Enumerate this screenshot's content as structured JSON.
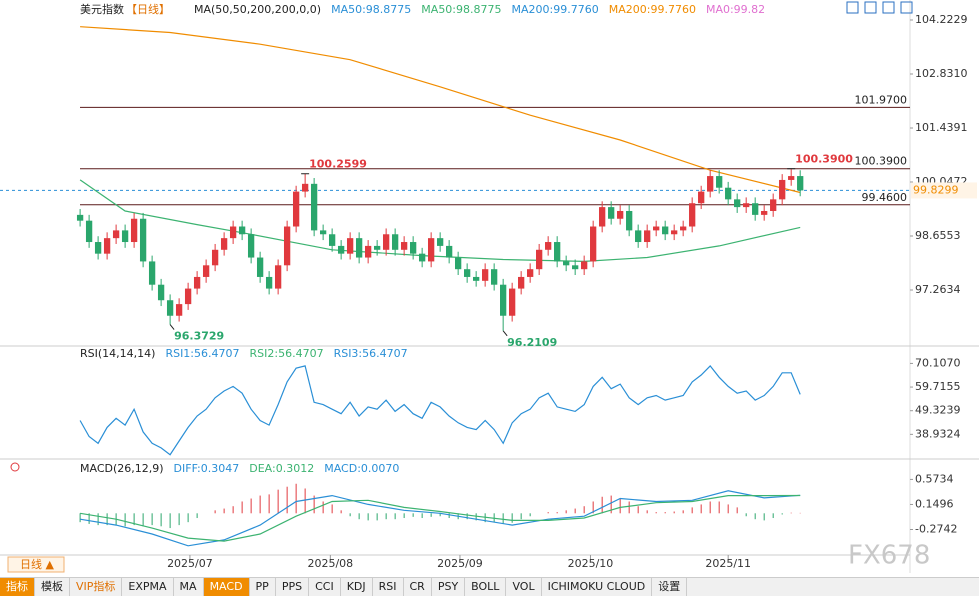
{
  "chart_data": [
    {
      "type": "candlestick",
      "title": "美元指数",
      "period": "【日线】",
      "legend": [
        {
          "text": "MA(50,50,200,200,0,0)",
          "color": "#222222"
        },
        {
          "text": "MA50:98.8775",
          "color": "#2a8fd6"
        },
        {
          "text": "MA50:98.8775",
          "color": "#3cb371"
        },
        {
          "text": "MA200:99.7760",
          "color": "#2a8fd6"
        },
        {
          "text": "MA200:99.7760",
          "color": "#f08c00"
        },
        {
          "text": "MA0:99.82",
          "color": "#e070d0"
        }
      ],
      "up_color": "#e0393e",
      "down_color": "#2aa66c",
      "open": [
        99.2,
        99.05,
        98.5,
        98.2,
        98.6,
        98.8,
        98.5,
        99.1,
        98.0,
        97.4,
        97.0,
        96.6,
        96.9,
        97.3,
        97.6,
        97.9,
        98.3,
        98.6,
        98.9,
        98.7,
        98.1,
        97.6,
        97.3,
        97.9,
        98.9,
        99.8,
        100.0,
        98.8,
        98.7,
        98.4,
        98.2,
        98.6,
        98.1,
        98.4,
        98.3,
        98.7,
        98.3,
        98.5,
        98.2,
        98.0,
        98.6,
        98.4,
        98.1,
        97.8,
        97.6,
        97.5,
        97.8,
        97.4,
        96.6,
        97.3,
        97.6,
        97.8,
        98.3,
        98.5,
        98.0,
        97.9,
        97.8,
        98.0,
        98.9,
        99.4,
        99.1,
        99.3,
        98.8,
        98.5,
        98.8,
        98.9,
        98.7,
        98.8,
        98.9,
        99.5,
        99.8,
        100.2,
        99.9,
        99.6,
        99.4,
        99.5,
        99.2,
        99.3,
        99.6,
        100.1,
        100.2
      ],
      "high": [
        99.35,
        99.2,
        98.65,
        98.75,
        98.95,
        98.95,
        99.25,
        99.25,
        98.15,
        97.55,
        97.15,
        97.05,
        97.45,
        97.75,
        98.05,
        98.45,
        98.75,
        99.05,
        99.05,
        98.85,
        98.25,
        97.75,
        98.05,
        99.05,
        99.95,
        100.2599,
        100.15,
        98.95,
        98.85,
        98.55,
        98.75,
        98.75,
        98.55,
        98.55,
        98.85,
        98.85,
        98.65,
        98.65,
        98.35,
        98.75,
        98.75,
        98.55,
        98.25,
        97.95,
        97.75,
        97.95,
        97.95,
        97.55,
        97.45,
        97.75,
        97.95,
        98.45,
        98.65,
        98.65,
        98.15,
        98.05,
        98.15,
        99.05,
        99.55,
        99.55,
        99.45,
        99.45,
        98.95,
        98.95,
        99.05,
        99.05,
        98.95,
        99.05,
        99.65,
        99.95,
        100.35,
        100.35,
        100.05,
        99.75,
        99.65,
        99.65,
        99.45,
        99.75,
        100.25,
        100.39,
        100.35
      ],
      "low": [
        98.9,
        98.35,
        98.05,
        98.05,
        98.45,
        98.35,
        98.35,
        97.85,
        97.25,
        96.85,
        96.3729,
        96.45,
        96.75,
        97.15,
        97.45,
        97.75,
        98.15,
        98.45,
        98.55,
        97.95,
        97.45,
        97.15,
        97.15,
        97.75,
        98.75,
        99.65,
        98.65,
        98.55,
        98.25,
        98.05,
        98.05,
        97.95,
        97.95,
        98.15,
        98.15,
        98.15,
        98.15,
        98.05,
        97.85,
        97.85,
        98.25,
        97.95,
        97.65,
        97.45,
        97.35,
        97.35,
        97.25,
        96.2109,
        96.45,
        97.15,
        97.45,
        97.65,
        98.15,
        97.85,
        97.75,
        97.65,
        97.65,
        97.85,
        98.75,
        98.95,
        98.95,
        98.65,
        98.35,
        98.35,
        98.65,
        98.55,
        98.55,
        98.65,
        98.75,
        99.35,
        99.65,
        99.75,
        99.45,
        99.25,
        99.25,
        99.05,
        99.05,
        99.15,
        99.45,
        99.95,
        99.68
      ],
      "close": [
        99.05,
        98.5,
        98.2,
        98.6,
        98.8,
        98.5,
        99.1,
        98.0,
        97.4,
        97.0,
        96.6,
        96.9,
        97.3,
        97.6,
        97.9,
        98.3,
        98.6,
        98.9,
        98.7,
        98.1,
        97.6,
        97.3,
        97.9,
        98.9,
        99.8,
        100.0,
        98.8,
        98.7,
        98.4,
        98.2,
        98.6,
        98.1,
        98.4,
        98.3,
        98.7,
        98.3,
        98.5,
        98.2,
        98.0,
        98.6,
        98.4,
        98.1,
        97.8,
        97.6,
        97.5,
        97.8,
        97.4,
        96.6,
        97.3,
        97.6,
        97.8,
        98.3,
        98.5,
        98.0,
        97.9,
        97.8,
        98.0,
        98.9,
        99.4,
        99.1,
        99.3,
        98.8,
        98.5,
        98.8,
        98.9,
        98.7,
        98.8,
        98.9,
        99.5,
        99.8,
        100.2,
        99.9,
        99.6,
        99.4,
        99.5,
        99.2,
        99.3,
        99.6,
        100.1,
        100.2,
        99.83
      ],
      "series": [
        {
          "name": "MA200",
          "color": "#f08c00",
          "x": [
            0,
            10,
            20,
            30,
            40,
            50,
            60,
            70,
            80
          ],
          "values": [
            104.05,
            103.9,
            103.6,
            103.2,
            102.5,
            101.77,
            101.13,
            100.35,
            99.776
          ]
        },
        {
          "name": "MA50",
          "color": "#3cb371",
          "x": [
            0,
            5,
            13,
            19,
            28,
            38,
            47,
            56,
            63,
            71,
            80
          ],
          "values": [
            100.1,
            99.3,
            98.95,
            98.7,
            98.3,
            98.15,
            98.05,
            98.0,
            98.1,
            98.4,
            98.8775
          ]
        }
      ],
      "hlines": [
        {
          "value": 101.97,
          "label": "101.9700"
        },
        {
          "value": 100.39,
          "label": "100.3900"
        },
        {
          "value": 99.46,
          "label": "99.4600"
        }
      ],
      "high_labels": [
        100.2599,
        {
          "value": 100.39,
          "label": "100.3900"
        }
      ],
      "low_labels": [
        96.3729,
        96.2109
      ],
      "last": 99.8299,
      "ylim": [
        95.846,
        104.738
      ],
      "yticks": [
        104.2229,
        {
          "value": 102.831,
          "label": "102.8310"
        },
        101.4391,
        100.0472,
        98.6553,
        97.2634
      ],
      "xlim": [
        -8.9,
        92.2
      ],
      "xticks": [
        {
          "value": 12.2,
          "label": "2025/07"
        },
        {
          "value": 27.8,
          "label": "2025/08"
        },
        {
          "value": 42.2,
          "label": "2025/09"
        },
        {
          "value": 56.7,
          "label": "2025/10"
        },
        {
          "value": 72,
          "label": "2025/11"
        }
      ]
    },
    {
      "type": "line",
      "title": "RSI(14,14,14)",
      "legend": [
        {
          "text": "RSI1:56.4707",
          "color": "#2a8fd6"
        },
        {
          "text": "RSI2:56.4707",
          "color": "#3cb371"
        },
        {
          "text": "RSI3:56.4707",
          "color": "#2a8fd6"
        }
      ],
      "series": [
        {
          "name": "RSI",
          "color": "#2a8fd6",
          "values": [
            45,
            38,
            35,
            42,
            46,
            43,
            50,
            40,
            35,
            33,
            30,
            36,
            42,
            47,
            50,
            55,
            58,
            60,
            57,
            50,
            45,
            43,
            52,
            62,
            68,
            69,
            53,
            52,
            50,
            48,
            53,
            47,
            51,
            50,
            54,
            49,
            52,
            48,
            46,
            53,
            51,
            47,
            44,
            42,
            41,
            45,
            41,
            35,
            44,
            48,
            50,
            55,
            57,
            51,
            50,
            49,
            52,
            60,
            64,
            59,
            61,
            55,
            52,
            55,
            56,
            54,
            55,
            56,
            62,
            65,
            69,
            64,
            60,
            57,
            58,
            54,
            56,
            60,
            66,
            66,
            56.4707
          ]
        }
      ],
      "ylim": [
        28.54,
        76.88
      ],
      "yticks": [
        {
          "value": 70.107,
          "label": "70.1070"
        },
        59.7155,
        49.3239,
        38.9324
      ]
    },
    {
      "type": "macd",
      "title": "MACD(26,12,9)",
      "legend": [
        {
          "text": "DIFF:0.3047",
          "color": "#2a8fd6"
        },
        {
          "text": "DEA:0.3012",
          "color": "#3cb371"
        },
        {
          "text": "MACD:0.0070",
          "color": "#2a8fd6"
        }
      ],
      "up_color": "#e0393e",
      "down_color": "#2aa66c",
      "bars": [
        -0.15,
        -0.18,
        -0.2,
        -0.2,
        -0.2,
        -0.22,
        -0.2,
        -0.22,
        -0.2,
        -0.22,
        -0.25,
        -0.2,
        -0.15,
        -0.08,
        0.0,
        0.05,
        0.08,
        0.12,
        0.2,
        0.25,
        0.3,
        0.32,
        0.4,
        0.45,
        0.5,
        0.42,
        0.3,
        0.2,
        0.15,
        0.05,
        -0.05,
        -0.1,
        -0.12,
        -0.12,
        -0.1,
        -0.1,
        -0.08,
        -0.06,
        -0.08,
        -0.06,
        -0.05,
        -0.08,
        -0.1,
        -0.1,
        -0.12,
        -0.15,
        -0.15,
        -0.18,
        -0.16,
        -0.1,
        -0.05,
        0.0,
        0.02,
        0.02,
        0.05,
        0.08,
        0.12,
        0.2,
        0.28,
        0.3,
        0.25,
        0.2,
        0.12,
        0.05,
        0.02,
        0.02,
        0.03,
        0.05,
        0.1,
        0.15,
        0.2,
        0.2,
        0.15,
        0.1,
        -0.05,
        -0.1,
        -0.12,
        -0.08,
        -0.02,
        0.01,
        0.007
      ],
      "series": [
        {
          "name": "DIFF",
          "color": "#2a8fd6",
          "x": [
            0,
            4,
            8,
            12,
            16,
            20,
            24,
            28,
            32,
            36,
            40,
            44,
            48,
            52,
            56,
            60,
            64,
            68,
            72,
            76,
            80
          ],
          "values": [
            -0.1,
            -0.2,
            -0.35,
            -0.55,
            -0.45,
            -0.2,
            0.2,
            0.3,
            0.15,
            0.05,
            0.0,
            -0.1,
            -0.2,
            -0.1,
            -0.05,
            0.25,
            0.2,
            0.22,
            0.38,
            0.26,
            0.3047
          ]
        },
        {
          "name": "DEA",
          "color": "#3cb371",
          "x": [
            0,
            4,
            8,
            12,
            16,
            20,
            24,
            28,
            32,
            36,
            40,
            44,
            48,
            52,
            56,
            60,
            64,
            68,
            72,
            76,
            80
          ],
          "values": [
            0.0,
            -0.1,
            -0.25,
            -0.42,
            -0.47,
            -0.35,
            -0.05,
            0.2,
            0.22,
            0.1,
            0.03,
            -0.05,
            -0.12,
            -0.12,
            -0.08,
            0.1,
            0.18,
            0.2,
            0.3,
            0.3,
            0.3012
          ]
        }
      ],
      "ylim": [
        -0.672,
        0.902
      ],
      "yticks": [
        0.5734,
        0.1496,
        -0.2742
      ]
    }
  ],
  "toolbar": {
    "period": "日线 ▲",
    "tabs": [
      "指标",
      "模板",
      "VIP指标",
      "EXPMA",
      "MA",
      "MACD",
      "PP",
      "PPS",
      "CCI",
      "KDJ",
      "RSI",
      "CR",
      "PSY",
      "BOLL",
      "VOL",
      "ICHIMOKU CLOUD",
      "设置"
    ],
    "active": [
      "指标",
      "MACD"
    ],
    "highlight": [
      "VIP指标"
    ]
  },
  "watermark": "FX678"
}
